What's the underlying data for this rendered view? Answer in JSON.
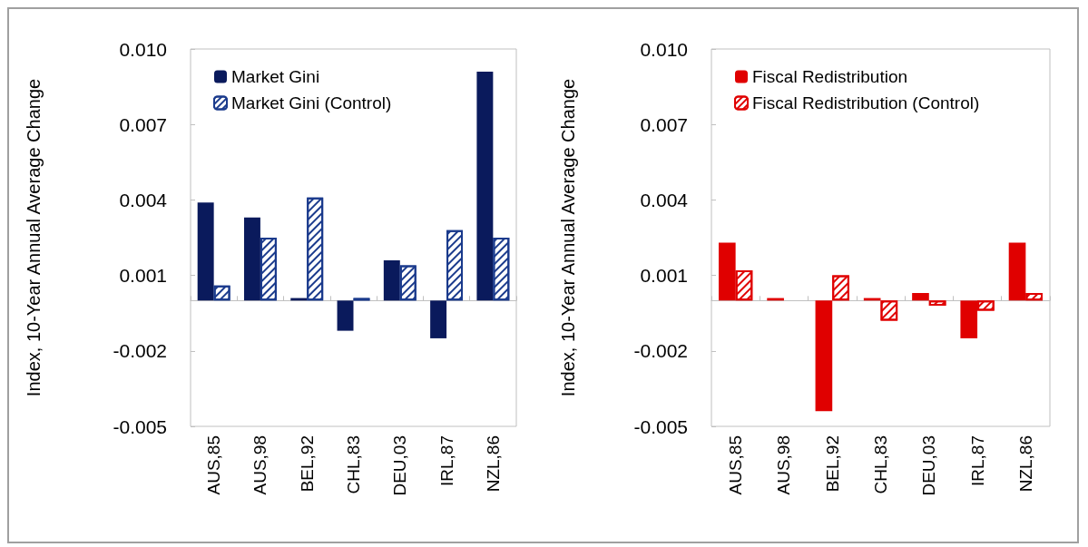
{
  "chart_data": [
    {
      "type": "bar",
      "categories": [
        "AUS,85",
        "AUS,98",
        "BEL,92",
        "CHL,83",
        "DEU,03",
        "IRL,87",
        "NZL,86"
      ],
      "ylabel": "Index, 10-Year Annual Average Change",
      "ylim": [
        -0.005,
        0.01
      ],
      "yticks": [
        {
          "value": -0.005,
          "label": "-0.005"
        },
        {
          "value": -0.002,
          "label": "-0.002"
        },
        {
          "value": 0.001,
          "label": "0.001"
        },
        {
          "value": 0.004,
          "label": "0.004"
        },
        {
          "value": 0.007,
          "label": "0.007"
        },
        {
          "value": 0.01,
          "label": "0.010"
        }
      ],
      "grid": false,
      "legend": "top left",
      "series": [
        {
          "name": "Market Gini",
          "color": "#0a1a5c",
          "values": [
            0.0039,
            0.0033,
            0.0001,
            -0.0012,
            0.0016,
            -0.0015,
            0.0091
          ]
        },
        {
          "name": "Market Gini (Control)",
          "color": "#1a3a8c",
          "values": [
            0.0006,
            0.0025,
            0.0041,
            0.0001,
            0.0014,
            0.0028,
            0.0025
          ]
        }
      ]
    },
    {
      "type": "bar",
      "categories": [
        "AUS,85",
        "AUS,98",
        "BEL,92",
        "CHL,83",
        "DEU,03",
        "IRL,87",
        "NZL,86"
      ],
      "ylabel": "Index, 10-Year Annual Average Change",
      "ylim": [
        -0.005,
        0.01
      ],
      "yticks": [
        {
          "value": -0.005,
          "label": "-0.005"
        },
        {
          "value": -0.002,
          "label": "-0.002"
        },
        {
          "value": 0.001,
          "label": "0.001"
        },
        {
          "value": 0.004,
          "label": "0.004"
        },
        {
          "value": 0.007,
          "label": "0.007"
        },
        {
          "value": 0.01,
          "label": "0.010"
        }
      ],
      "grid": false,
      "legend": "top left",
      "series": [
        {
          "name": "Fiscal Redistribution",
          "color": "#e00000",
          "values": [
            0.0023,
            0.0001,
            -0.0044,
            0.0001,
            0.0003,
            -0.0015,
            0.0023
          ]
        },
        {
          "name": "Fiscal Redistribution (Control)",
          "color": "#e00000",
          "values": [
            0.0012,
            null,
            0.001,
            -0.0008,
            -0.0002,
            -0.0004,
            0.0003
          ]
        }
      ]
    }
  ]
}
